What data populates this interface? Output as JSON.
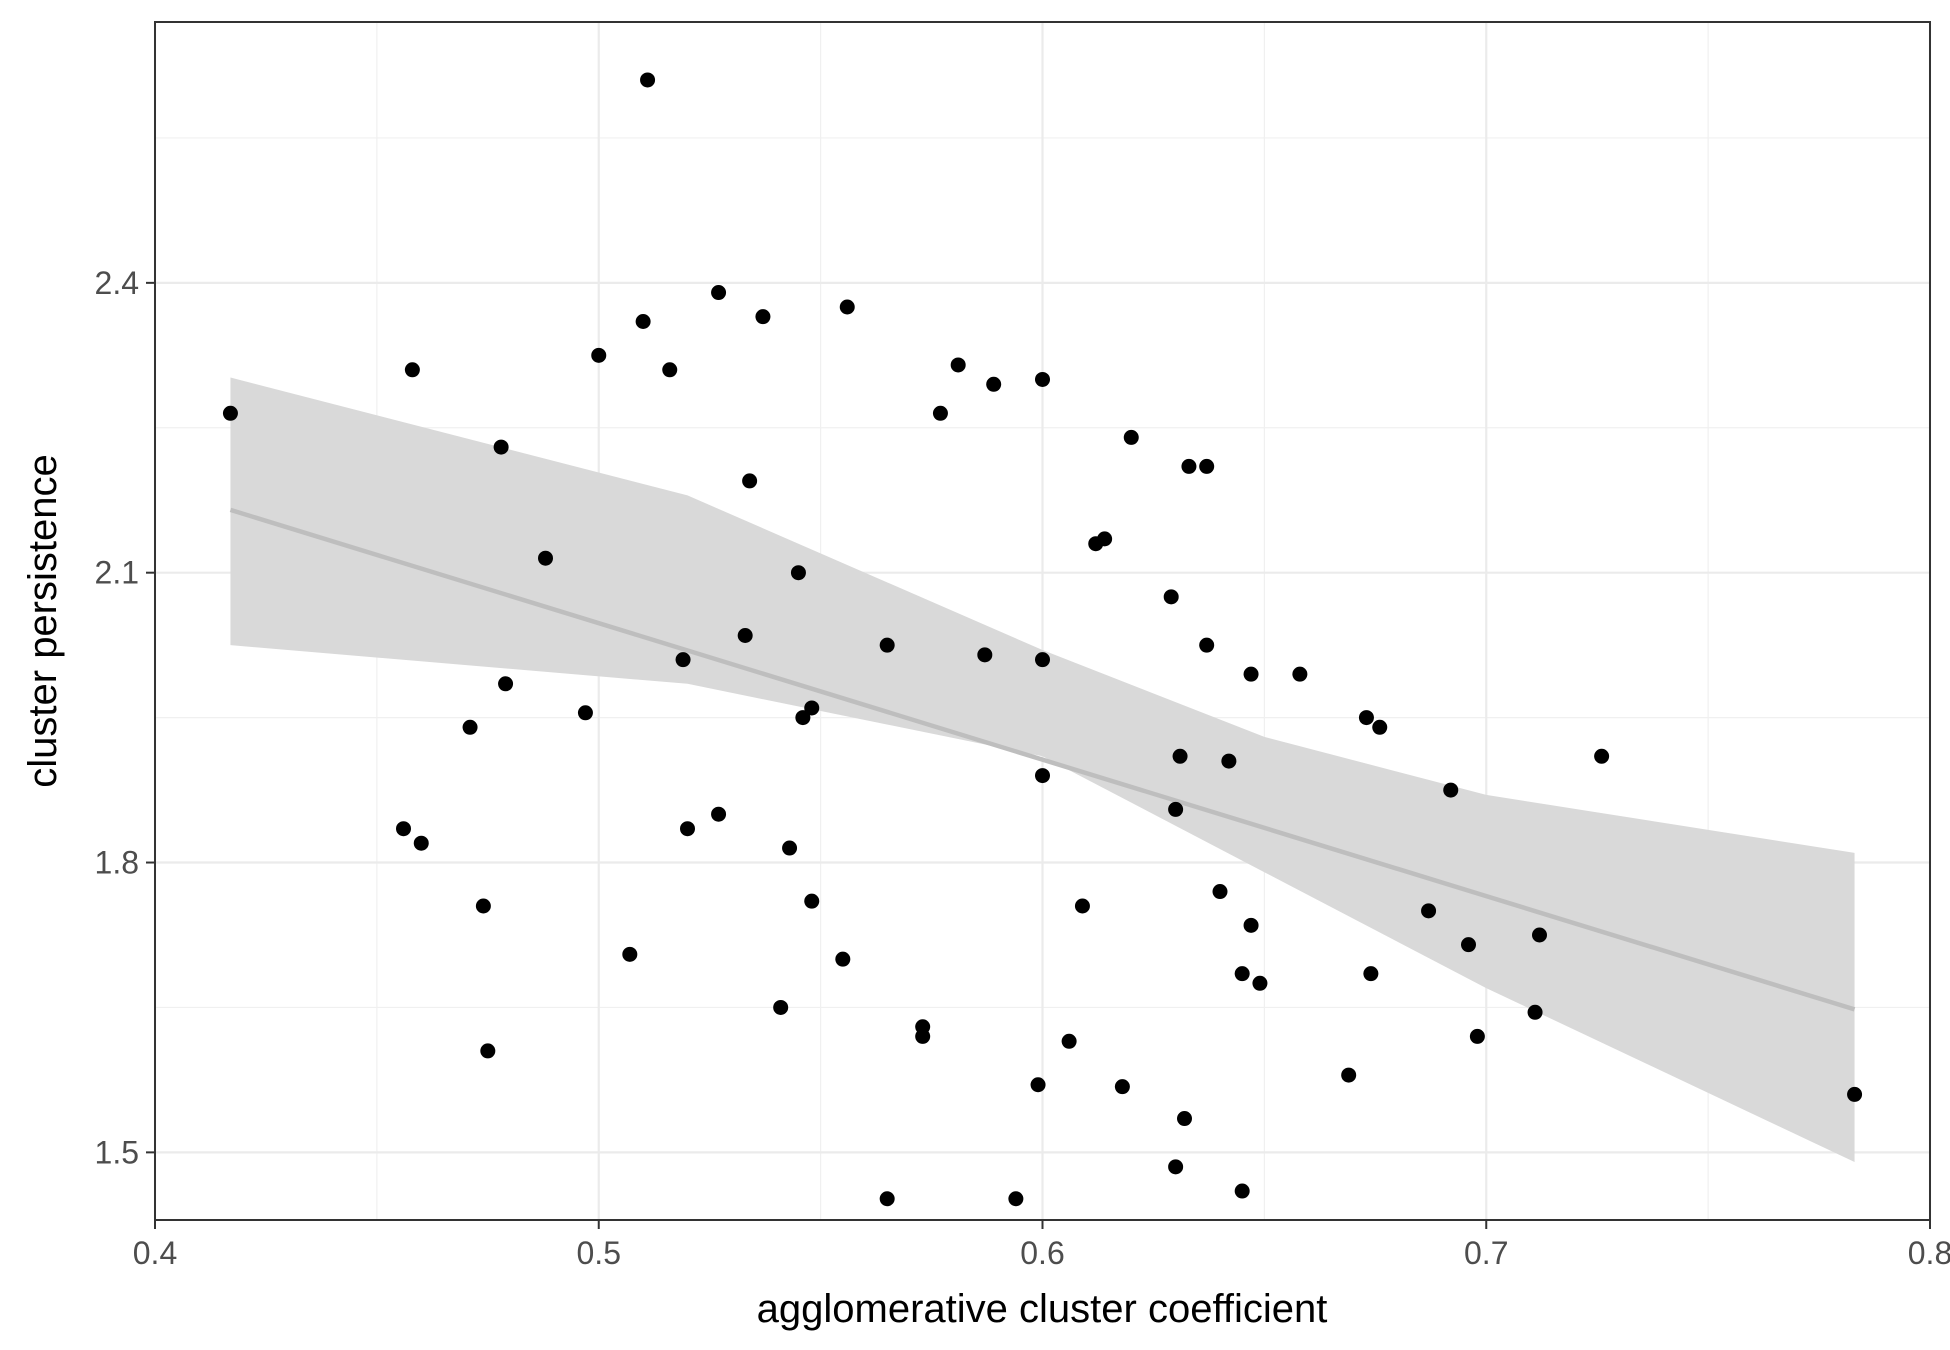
{
  "chart_data": {
    "type": "scatter",
    "title": "",
    "xlabel": "agglomerative cluster coefficient",
    "ylabel": "cluster persistence",
    "xlim": [
      0.4,
      0.8
    ],
    "ylim": [
      1.43,
      2.67
    ],
    "x_ticks": [
      0.4,
      0.5,
      0.6,
      0.7,
      0.8
    ],
    "x_tick_labels": [
      "0.4",
      "0.5",
      "0.6",
      "0.7",
      "0.8"
    ],
    "y_ticks": [
      1.5,
      1.8,
      2.1,
      2.4
    ],
    "y_tick_labels": [
      "1.5",
      "1.8",
      "2.1",
      "2.4"
    ],
    "grid": true,
    "theme": "bw",
    "point_color": "#000000",
    "smooth": {
      "method": "linear",
      "color": "#bebebe",
      "band_color": "#d9d9d9",
      "line": [
        [
          0.417,
          2.165
        ],
        [
          0.783,
          1.648
        ]
      ],
      "band_upper": [
        [
          0.417,
          2.302
        ],
        [
          0.52,
          2.18
        ],
        [
          0.6,
          2.02
        ],
        [
          0.65,
          1.93
        ],
        [
          0.7,
          1.87
        ],
        [
          0.783,
          1.81
        ]
      ],
      "band_lower": [
        [
          0.417,
          2.025
        ],
        [
          0.52,
          1.985
        ],
        [
          0.6,
          1.91
        ],
        [
          0.65,
          1.79
        ],
        [
          0.7,
          1.67
        ],
        [
          0.783,
          1.49
        ]
      ]
    },
    "points": [
      [
        0.511,
        2.61
      ],
      [
        0.417,
        2.265
      ],
      [
        0.458,
        2.31
      ],
      [
        0.478,
        2.23
      ],
      [
        0.5,
        2.325
      ],
      [
        0.51,
        2.36
      ],
      [
        0.516,
        2.31
      ],
      [
        0.527,
        2.39
      ],
      [
        0.537,
        2.365
      ],
      [
        0.556,
        2.375
      ],
      [
        0.534,
        2.195
      ],
      [
        0.488,
        2.115
      ],
      [
        0.545,
        2.1
      ],
      [
        0.533,
        2.035
      ],
      [
        0.519,
        2.01
      ],
      [
        0.479,
        1.985
      ],
      [
        0.497,
        1.955
      ],
      [
        0.471,
        1.94
      ],
      [
        0.548,
        1.96
      ],
      [
        0.546,
        1.95
      ],
      [
        0.456,
        1.835
      ],
      [
        0.46,
        1.82
      ],
      [
        0.52,
        1.835
      ],
      [
        0.527,
        1.85
      ],
      [
        0.474,
        1.755
      ],
      [
        0.543,
        1.815
      ],
      [
        0.548,
        1.76
      ],
      [
        0.507,
        1.705
      ],
      [
        0.555,
        1.7
      ],
      [
        0.541,
        1.65
      ],
      [
        0.475,
        1.605
      ],
      [
        0.565,
        2.025
      ],
      [
        0.577,
        2.265
      ],
      [
        0.581,
        2.315
      ],
      [
        0.589,
        2.295
      ],
      [
        0.6,
        2.3
      ],
      [
        0.587,
        2.015
      ],
      [
        0.6,
        2.01
      ],
      [
        0.6,
        1.89
      ],
      [
        0.62,
        2.24
      ],
      [
        0.633,
        2.21
      ],
      [
        0.637,
        2.21
      ],
      [
        0.612,
        2.13
      ],
      [
        0.614,
        2.135
      ],
      [
        0.629,
        2.075
      ],
      [
        0.637,
        2.025
      ],
      [
        0.647,
        1.995
      ],
      [
        0.658,
        1.995
      ],
      [
        0.631,
        1.91
      ],
      [
        0.642,
        1.905
      ],
      [
        0.63,
        1.855
      ],
      [
        0.609,
        1.755
      ],
      [
        0.64,
        1.77
      ],
      [
        0.647,
        1.735
      ],
      [
        0.645,
        1.685
      ],
      [
        0.649,
        1.675
      ],
      [
        0.573,
        1.63
      ],
      [
        0.573,
        1.62
      ],
      [
        0.606,
        1.615
      ],
      [
        0.599,
        1.57
      ],
      [
        0.618,
        1.568
      ],
      [
        0.632,
        1.535
      ],
      [
        0.63,
        1.485
      ],
      [
        0.645,
        1.46
      ],
      [
        0.565,
        1.452
      ],
      [
        0.594,
        1.452
      ],
      [
        0.673,
        1.95
      ],
      [
        0.676,
        1.94
      ],
      [
        0.692,
        1.875
      ],
      [
        0.726,
        1.91
      ],
      [
        0.687,
        1.75
      ],
      [
        0.696,
        1.715
      ],
      [
        0.712,
        1.725
      ],
      [
        0.674,
        1.685
      ],
      [
        0.711,
        1.645
      ],
      [
        0.698,
        1.62
      ],
      [
        0.669,
        1.58
      ],
      [
        0.783,
        1.56
      ]
    ]
  }
}
